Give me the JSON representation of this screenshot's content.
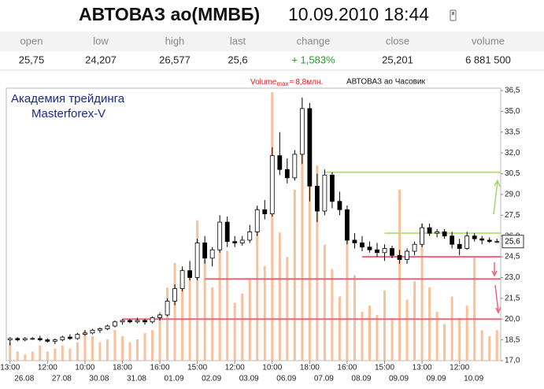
{
  "header": {
    "title": "АВТОВАЗ ао(ММВБ)",
    "datetime": "10.09.2010 18:44"
  },
  "quote_table": {
    "columns": [
      "open",
      "low",
      "high",
      "last",
      "change",
      "close",
      "volume"
    ],
    "values": [
      "25,75",
      "24,207",
      "26,577",
      "25,6",
      "+ 1,583%",
      "25,201",
      "6 881 500"
    ]
  },
  "chart_data": {
    "type": "candlestick",
    "title": "АВТОВАЗ ао Часовик",
    "volume_caption": "Volume",
    "volume_caption_sub": "max",
    "volume_caption_eq": "=",
    "volume_max": {
      "value": 8.8,
      "label": "8,8млн."
    },
    "watermark": [
      "Академия трейдинга",
      "Masterforex-V"
    ],
    "categories": [
      "13:00",
      null,
      null,
      null,
      null,
      "12:00",
      null,
      null,
      null,
      null,
      "10:00",
      null,
      null,
      null,
      null,
      "18:00",
      null,
      null,
      null,
      null,
      "16:00",
      null,
      null,
      null,
      null,
      "15:00",
      null,
      null,
      null,
      null,
      "12:00",
      null,
      null,
      null,
      null,
      "10:00",
      null,
      null,
      null,
      null,
      "18:00",
      null,
      null,
      null,
      null,
      "16:00",
      null,
      null,
      null,
      null,
      "15:00",
      null,
      null,
      null,
      null,
      "13:00",
      null,
      null,
      null,
      null,
      "12:00",
      null,
      null,
      null,
      null,
      null
    ],
    "dates": [
      "26.08",
      null,
      null,
      null,
      null,
      "27.08",
      null,
      null,
      null,
      null,
      "30.08",
      null,
      null,
      null,
      null,
      "31.08",
      null,
      null,
      null,
      null,
      "01.09",
      null,
      null,
      null,
      null,
      "02.09",
      null,
      null,
      null,
      null,
      "03.09",
      null,
      null,
      null,
      null,
      "06.09",
      null,
      null,
      null,
      null,
      "07.09",
      null,
      null,
      null,
      null,
      "08.09",
      null,
      null,
      null,
      null,
      "09.09",
      null,
      null,
      null,
      null,
      "09.09",
      null,
      null,
      null,
      null,
      "10.09",
      null,
      null,
      null,
      null,
      null
    ],
    "open": [
      18.5,
      18.6,
      18.5,
      18.6,
      18.6,
      18.5,
      18.4,
      18.5,
      18.7,
      18.6,
      18.9,
      19.0,
      19.2,
      19.3,
      19.5,
      19.8,
      19.9,
      19.8,
      19.9,
      19.8,
      20.1,
      20.3,
      21.3,
      22.2,
      23.5,
      23.0,
      25.5,
      24.4,
      25.0,
      27.0,
      25.6,
      25.5,
      25.7,
      26.3,
      27.9,
      27.6,
      31.8,
      30.8,
      30.2,
      31.9,
      35.2,
      29.6,
      27.8,
      30.4,
      28.5,
      27.9,
      25.7,
      25.5,
      25.2,
      25.0,
      24.8,
      25.1,
      24.6,
      24.3,
      24.9,
      25.4,
      26.6,
      26.2,
      26.3,
      26.0,
      25.4,
      25.1,
      26.0,
      25.8,
      25.7,
      25.6
    ],
    "high": [
      18.7,
      18.7,
      18.7,
      18.7,
      18.8,
      18.6,
      18.6,
      18.8,
      18.9,
      19.0,
      19.2,
      19.3,
      19.4,
      19.6,
      19.9,
      20.0,
      20.0,
      20.1,
      20.0,
      20.2,
      20.4,
      21.5,
      22.5,
      23.8,
      24.2,
      25.8,
      26.0,
      25.2,
      27.5,
      27.4,
      26.0,
      26.0,
      26.8,
      28.2,
      28.6,
      32.4,
      33.5,
      31.6,
      32.2,
      36.0,
      35.6,
      30.5,
      30.8,
      30.6,
      29.2,
      28.2,
      26.2,
      26.0,
      25.6,
      25.5,
      25.4,
      25.3,
      25.0,
      25.1,
      25.6,
      26.9,
      26.9,
      26.5,
      26.5,
      26.3,
      25.8,
      26.3,
      26.2,
      26.0,
      25.9,
      25.8
    ],
    "low": [
      18.1,
      18.4,
      18.4,
      18.5,
      18.4,
      18.3,
      18.2,
      18.4,
      18.5,
      18.5,
      18.8,
      18.9,
      19.0,
      19.2,
      19.4,
      19.6,
      19.7,
      19.7,
      19.6,
      19.7,
      19.9,
      20.2,
      21.0,
      22.0,
      22.8,
      22.8,
      24.0,
      23.8,
      24.8,
      25.2,
      25.2,
      25.3,
      25.5,
      26.0,
      27.2,
      27.4,
      30.4,
      29.8,
      30.0,
      31.2,
      28.5,
      27.0,
      27.5,
      28.0,
      27.5,
      25.4,
      25.1,
      24.9,
      24.8,
      24.5,
      24.2,
      24.4,
      24.0,
      24.0,
      24.6,
      25.2,
      26.0,
      25.9,
      25.8,
      25.1,
      24.6,
      25.0,
      25.6,
      25.4,
      25.5,
      25.5
    ],
    "close": [
      18.6,
      18.5,
      18.6,
      18.6,
      18.5,
      18.4,
      18.5,
      18.7,
      18.6,
      18.9,
      19.0,
      19.2,
      19.3,
      19.5,
      19.8,
      19.9,
      19.8,
      19.9,
      19.8,
      20.1,
      20.3,
      21.3,
      22.2,
      23.5,
      23.0,
      25.5,
      24.4,
      25.0,
      27.0,
      25.6,
      25.5,
      25.7,
      26.3,
      27.9,
      27.6,
      31.8,
      30.8,
      30.2,
      31.9,
      35.2,
      29.6,
      27.8,
      30.4,
      28.5,
      27.9,
      25.7,
      25.5,
      25.2,
      25.0,
      24.8,
      25.1,
      24.6,
      24.3,
      24.9,
      25.4,
      26.6,
      26.2,
      26.3,
      26.0,
      25.4,
      25.1,
      26.0,
      25.8,
      25.7,
      25.6,
      25.6
    ],
    "volume": [
      0.6,
      0.3,
      0.2,
      0.3,
      0.5,
      0.3,
      0.4,
      0.5,
      0.4,
      0.6,
      1.0,
      0.8,
      0.6,
      0.7,
      1.0,
      0.8,
      0.6,
      0.7,
      0.9,
      1.0,
      1.6,
      2.4,
      3.2,
      3.0,
      2.7,
      4.6,
      3.3,
      2.4,
      4.5,
      3.6,
      1.9,
      2.2,
      2.7,
      5.0,
      3.1,
      8.8,
      4.2,
      3.4,
      5.6,
      8.1,
      7.3,
      6.4,
      3.8,
      3.0,
      2.1,
      4.3,
      2.8,
      1.6,
      1.8,
      1.5,
      2.3,
      1.4,
      5.6,
      2.0,
      2.6,
      4.5,
      2.4,
      1.6,
      1.2,
      2.1,
      1.4,
      1.8,
      3.4,
      1.0,
      0.8,
      1.0
    ],
    "up_color": "#ffffff",
    "down_color": "#000000",
    "volume_color": "#f8b68a",
    "levels": [
      {
        "value": 20.0,
        "start": 15,
        "color": "#f0637a"
      },
      {
        "value": 22.9,
        "start": 26,
        "color": "#f0637a"
      },
      {
        "value": 24.5,
        "start": 47,
        "color": "#f0637a"
      },
      {
        "value": 26.2,
        "start": 50,
        "color": "#b8e27f"
      },
      {
        "value": 30.6,
        "start": 42,
        "color": "#b8e27f"
      }
    ],
    "last_price": {
      "value": 25.6,
      "label": "25,6"
    },
    "ylim": [
      17.0,
      36.5
    ],
    "yticks": [
      {
        "value": 17.0,
        "label": "17,0"
      },
      {
        "value": 18.5,
        "label": "18,5"
      },
      {
        "value": 20.0,
        "label": "20,0"
      },
      {
        "value": 21.5,
        "label": "21,5"
      },
      {
        "value": 23.0,
        "label": "23,0"
      },
      {
        "value": 24.5,
        "label": "24,5"
      },
      {
        "value": 26.0,
        "label": "26,0"
      },
      {
        "value": 27.5,
        "label": "27,5"
      },
      {
        "value": 29.0,
        "label": "29,0"
      },
      {
        "value": 30.5,
        "label": "30,5"
      },
      {
        "value": 32.0,
        "label": "32,0"
      },
      {
        "value": 33.5,
        "label": "33,5"
      },
      {
        "value": 35.0,
        "label": "35,0"
      },
      {
        "value": 36.5,
        "label": "36,5"
      }
    ]
  }
}
